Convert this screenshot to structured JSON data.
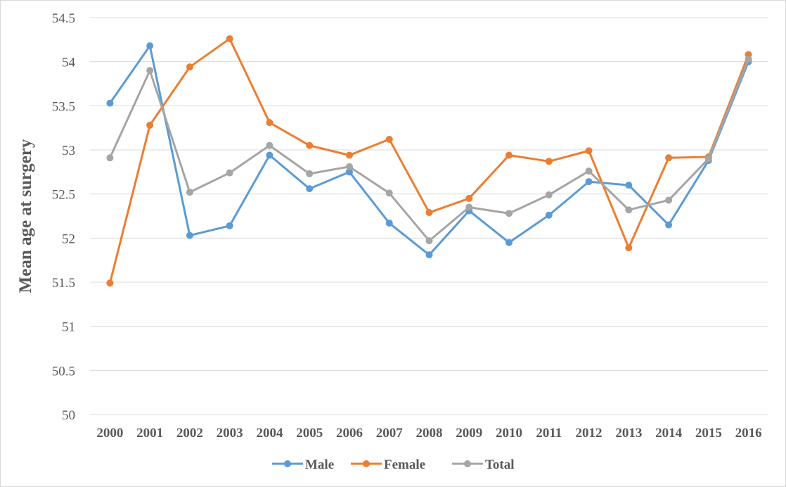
{
  "chart_data": {
    "type": "line",
    "title": "",
    "xlabel": "",
    "ylabel": "Mean age at surgery",
    "ylim": [
      50,
      54.5
    ],
    "yticks": [
      "50",
      "50.5",
      "51",
      "51.5",
      "52",
      "52.5",
      "53",
      "53.5",
      "54",
      "54.5"
    ],
    "grid": true,
    "legend_position": "bottom",
    "categories": [
      "2000",
      "2001",
      "2002",
      "2003",
      "2004",
      "2005",
      "2006",
      "2007",
      "2008",
      "2009",
      "2010",
      "2011",
      "2012",
      "2013",
      "2014",
      "2015",
      "2016"
    ],
    "series": [
      {
        "name": "Male",
        "color": "#5b9bd5",
        "values": [
          53.53,
          54.18,
          52.03,
          52.14,
          52.94,
          52.56,
          52.75,
          52.17,
          51.81,
          52.31,
          51.95,
          52.26,
          52.64,
          52.6,
          52.15,
          52.88,
          54.0
        ]
      },
      {
        "name": "Female",
        "color": "#ed7d31",
        "values": [
          51.49,
          53.28,
          53.94,
          54.26,
          53.31,
          53.05,
          52.94,
          53.12,
          52.29,
          52.45,
          52.94,
          52.87,
          52.99,
          51.89,
          52.91,
          52.92,
          54.08
        ]
      },
      {
        "name": "Total",
        "color": "#a5a5a5",
        "values": [
          52.91,
          53.9,
          52.52,
          52.74,
          53.05,
          52.73,
          52.81,
          52.51,
          51.97,
          52.35,
          52.28,
          52.49,
          52.76,
          52.32,
          52.43,
          52.9,
          54.03
        ]
      }
    ]
  }
}
